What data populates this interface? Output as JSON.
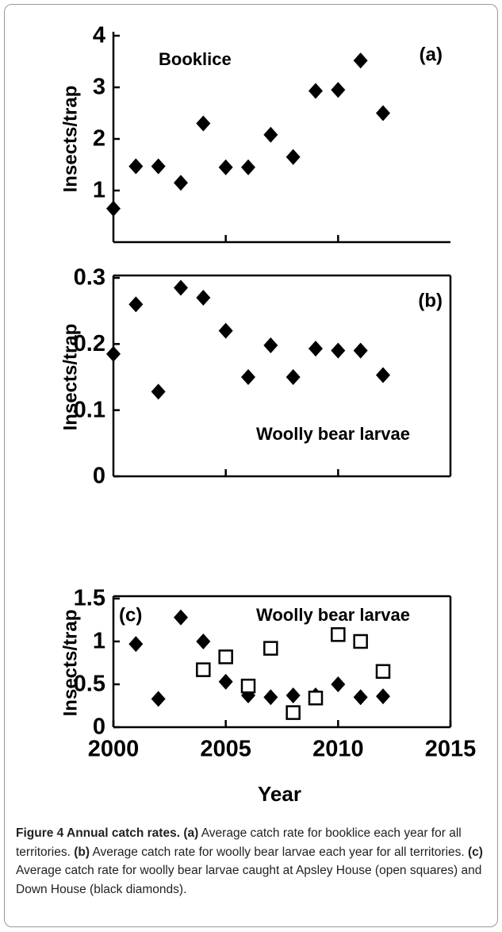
{
  "chart_data": [
    {
      "type": "scatter",
      "ylabel": "Insects/trap",
      "annotations": [
        "Booklice",
        "(a)"
      ],
      "xlim": [
        2000,
        2015
      ],
      "xticks": [
        2005,
        2010
      ],
      "ylim": [
        0,
        4
      ],
      "yticks": [
        1,
        2,
        3,
        4
      ],
      "series": [
        {
          "color": "#000000",
          "marker": "diamond",
          "x": [
            2000,
            2001,
            2002,
            2003,
            2004,
            2005,
            2006,
            2007,
            2008,
            2009,
            2010,
            2011,
            2012
          ],
          "values": [
            0.65,
            1.47,
            1.47,
            1.15,
            2.3,
            1.45,
            1.45,
            2.08,
            1.65,
            2.93,
            2.95,
            3.52,
            2.5
          ]
        }
      ]
    },
    {
      "type": "scatter",
      "ylabel": "Insects/trap",
      "annotations": [
        "Woolly bear larvae",
        "(b)"
      ],
      "xlim": [
        2000,
        2015
      ],
      "xticks": [
        2005,
        2010
      ],
      "ylim": [
        0,
        0.3
      ],
      "yticks": [
        0,
        0.1,
        0.2,
        0.3
      ],
      "series": [
        {
          "color": "#000000",
          "marker": "diamond",
          "x": [
            2000,
            2001,
            2002,
            2003,
            2004,
            2005,
            2006,
            2007,
            2008,
            2009,
            2010,
            2011,
            2012
          ],
          "values": [
            0.185,
            0.26,
            0.128,
            0.285,
            0.27,
            0.22,
            0.15,
            0.198,
            0.15,
            0.193,
            0.19,
            0.19,
            0.153
          ]
        }
      ]
    },
    {
      "type": "scatter",
      "ylabel": "Insects/trap",
      "xlabel": "Year",
      "annotations": [
        "Woolly bear larvae",
        "(c)"
      ],
      "xlim": [
        2000,
        2015
      ],
      "xticks": [
        2000,
        2005,
        2010,
        2015
      ],
      "ylim": [
        0,
        1.5
      ],
      "yticks": [
        0,
        0.5,
        1,
        1.5
      ],
      "series": [
        {
          "color": "#000000",
          "marker": "diamond",
          "x": [
            2001,
            2002,
            2003,
            2004,
            2005,
            2006,
            2007,
            2008,
            2009,
            2010,
            2011,
            2012
          ],
          "values": [
            0.97,
            0.33,
            1.28,
            1.0,
            0.53,
            0.37,
            0.35,
            0.37,
            0.37,
            0.5,
            0.35,
            0.36
          ]
        },
        {
          "color": "#000000",
          "marker": "open-square",
          "x": [
            2004,
            2005,
            2006,
            2007,
            2008,
            2009,
            2010,
            2011,
            2012
          ],
          "values": [
            0.67,
            0.82,
            0.48,
            0.92,
            0.17,
            0.34,
            1.08,
            1.0,
            0.65
          ]
        }
      ]
    }
  ],
  "caption": [
    {
      "text": "Figure 4 Annual catch rates.",
      "bold": true
    },
    {
      "text": " ",
      "bold": false
    },
    {
      "text": "(a)",
      "bold": true
    },
    {
      "text": " Average catch rate for booklice each year for all territories. ",
      "bold": false
    },
    {
      "text": "(b)",
      "bold": true
    },
    {
      "text": " Average catch rate for woolly bear larvae each year for all territories. ",
      "bold": false
    },
    {
      "text": "(c)",
      "bold": true
    },
    {
      "text": " Average catch rate for woolly bear larvae caught at Apsley House (open squares) and Down House (black diamonds).",
      "bold": false
    }
  ]
}
